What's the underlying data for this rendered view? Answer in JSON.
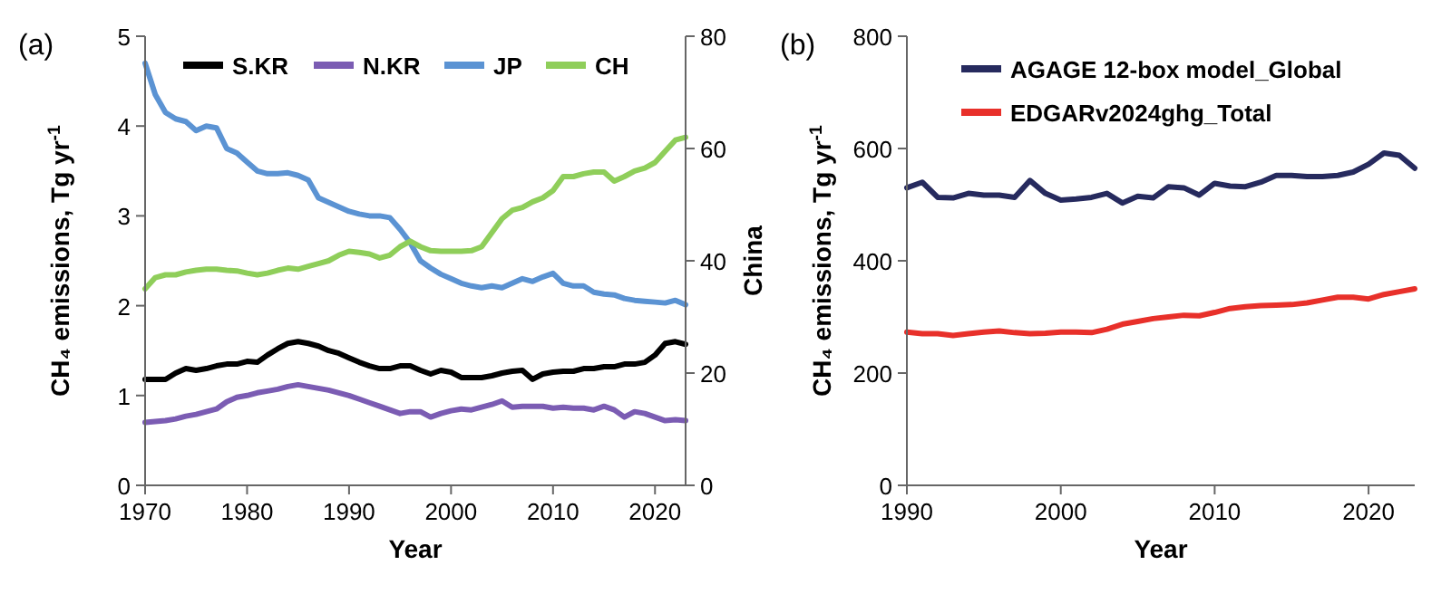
{
  "chart_data": [
    {
      "type": "line",
      "title": "(a)",
      "xlabel": "Year",
      "ylabel": "CH₄ emissions, Tg yr$^{-1}$",
      "y2label": "China",
      "legend": "top",
      "grid": false,
      "x": [
        1970,
        1971,
        1972,
        1973,
        1974,
        1975,
        1976,
        1977,
        1978,
        1979,
        1980,
        1981,
        1982,
        1983,
        1984,
        1985,
        1986,
        1987,
        1988,
        1989,
        1990,
        1991,
        1992,
        1993,
        1994,
        1995,
        1996,
        1997,
        1998,
        1999,
        2000,
        2001,
        2002,
        2003,
        2004,
        2005,
        2006,
        2007,
        2008,
        2009,
        2010,
        2011,
        2012,
        2013,
        2014,
        2015,
        2016,
        2017,
        2018,
        2019,
        2020,
        2021,
        2022,
        2023
      ],
      "xlim": [
        1970,
        2023
      ],
      "xticks": [
        1970,
        1980,
        1990,
        2000,
        2010,
        2020
      ],
      "ylim": [
        0,
        5
      ],
      "yticks": [
        0,
        1,
        2,
        3,
        4,
        5
      ],
      "y2lim": [
        0,
        80
      ],
      "y2ticks": [
        0,
        20,
        40,
        60,
        80
      ],
      "series": [
        {
          "name": "S.KR",
          "color": "#000000",
          "values": [
            1.18,
            1.18,
            1.18,
            1.25,
            1.3,
            1.28,
            1.3,
            1.33,
            1.35,
            1.35,
            1.38,
            1.37,
            1.45,
            1.52,
            1.58,
            1.6,
            1.58,
            1.55,
            1.5,
            1.47,
            1.42,
            1.37,
            1.33,
            1.3,
            1.3,
            1.33,
            1.33,
            1.28,
            1.24,
            1.28,
            1.26,
            1.2,
            1.2,
            1.2,
            1.22,
            1.25,
            1.27,
            1.28,
            1.18,
            1.24,
            1.26,
            1.27,
            1.27,
            1.3,
            1.3,
            1.32,
            1.32,
            1.35,
            1.35,
            1.37,
            1.45,
            1.58,
            1.6,
            1.57
          ]
        },
        {
          "name": "N.KR",
          "color": "#7b5cb3",
          "values": [
            0.7,
            0.71,
            0.72,
            0.74,
            0.77,
            0.79,
            0.82,
            0.85,
            0.93,
            0.98,
            1.0,
            1.03,
            1.05,
            1.07,
            1.1,
            1.12,
            1.1,
            1.08,
            1.06,
            1.03,
            1.0,
            0.96,
            0.92,
            0.88,
            0.84,
            0.8,
            0.82,
            0.82,
            0.76,
            0.8,
            0.83,
            0.85,
            0.84,
            0.87,
            0.9,
            0.94,
            0.87,
            0.88,
            0.88,
            0.88,
            0.86,
            0.87,
            0.86,
            0.86,
            0.84,
            0.88,
            0.84,
            0.76,
            0.82,
            0.8,
            0.76,
            0.72,
            0.73,
            0.72
          ]
        },
        {
          "name": "JP",
          "color": "#5b93d3",
          "values": [
            4.7,
            4.35,
            4.15,
            4.08,
            4.05,
            3.95,
            4.0,
            3.98,
            3.75,
            3.7,
            3.6,
            3.5,
            3.47,
            3.47,
            3.48,
            3.45,
            3.4,
            3.2,
            3.15,
            3.1,
            3.05,
            3.02,
            3.0,
            3.0,
            2.98,
            2.85,
            2.7,
            2.5,
            2.42,
            2.35,
            2.3,
            2.25,
            2.22,
            2.2,
            2.22,
            2.2,
            2.25,
            2.3,
            2.27,
            2.32,
            2.36,
            2.25,
            2.22,
            2.22,
            2.15,
            2.13,
            2.12,
            2.08,
            2.06,
            2.05,
            2.04,
            2.03,
            2.06,
            2.01
          ]
        },
        {
          "name": "CH",
          "color": "#8fce5a",
          "axis": "y2",
          "values": [
            35,
            37,
            37.5,
            37.5,
            38,
            38.3,
            38.5,
            38.5,
            38.3,
            38.2,
            37.8,
            37.5,
            37.8,
            38.3,
            38.7,
            38.5,
            39,
            39.5,
            40,
            41,
            41.7,
            41.5,
            41.2,
            40.5,
            41,
            42.5,
            43.5,
            42.5,
            41.8,
            41.7,
            41.7,
            41.7,
            41.8,
            42.5,
            45,
            47.5,
            49,
            49.5,
            50.5,
            51.2,
            52.5,
            55,
            55,
            55.5,
            55.8,
            55.8,
            54.2,
            55,
            56,
            56.5,
            57.5,
            59.5,
            61.5,
            62
          ]
        }
      ]
    },
    {
      "type": "line",
      "title": "(b)",
      "xlabel": "Year",
      "ylabel": "CH₄ emissions, Tg yr$^{-1}$",
      "legend": "top left",
      "grid": false,
      "x": [
        1990,
        1991,
        1992,
        1993,
        1994,
        1995,
        1996,
        1997,
        1998,
        1999,
        2000,
        2001,
        2002,
        2003,
        2004,
        2005,
        2006,
        2007,
        2008,
        2009,
        2010,
        2011,
        2012,
        2013,
        2014,
        2015,
        2016,
        2017,
        2018,
        2019,
        2020,
        2021,
        2022,
        2023
      ],
      "xlim": [
        1990,
        2023
      ],
      "xticks": [
        1990,
        2000,
        2010,
        2020
      ],
      "ylim": [
        0,
        800
      ],
      "yticks": [
        0,
        200,
        400,
        600,
        800
      ],
      "series": [
        {
          "name": "AGAGE 12-box model_Global",
          "color": "#262a5e",
          "values": [
            530,
            540,
            513,
            512,
            520,
            517,
            517,
            513,
            543,
            520,
            508,
            510,
            513,
            520,
            503,
            515,
            512,
            532,
            530,
            517,
            538,
            533,
            532,
            540,
            552,
            552,
            550,
            550,
            552,
            558,
            572,
            592,
            588,
            565
          ]
        },
        {
          "name": "EDGARv2024ghg_Total",
          "color": "#e8302a",
          "values": [
            273,
            270,
            270,
            267,
            270,
            273,
            275,
            272,
            270,
            271,
            273,
            273,
            272,
            278,
            287,
            292,
            297,
            300,
            303,
            302,
            308,
            315,
            318,
            320,
            321,
            322,
            325,
            330,
            335,
            335,
            332,
            340,
            345,
            350
          ]
        }
      ]
    }
  ]
}
